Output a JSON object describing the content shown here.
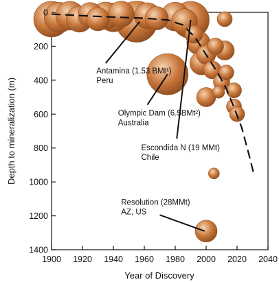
{
  "chart_data": {
    "type": "scatter",
    "title": "",
    "xlabel": "Year of Discovery",
    "ylabel": "Depth to mineralization (m)",
    "xlim": [
      1900,
      2040
    ],
    "ylim": [
      0,
      1400
    ],
    "y_inverted": true,
    "grid": false,
    "x_ticks": [
      "1900",
      "1920",
      "1940",
      "1960",
      "1980",
      "2000",
      "2020",
      "2040"
    ],
    "y_ticks": [
      "0",
      "200",
      "400",
      "600",
      "800",
      "1000",
      "1200",
      "1400"
    ],
    "bubble_color": "#c8763a",
    "bubble_highlight": "#f6d3b0",
    "bubble_shadow": "#8a4a1e",
    "points": [
      {
        "x": 1900,
        "y": 40,
        "size": 26
      },
      {
        "x": 1905,
        "y": 30,
        "size": 22
      },
      {
        "x": 1912,
        "y": 20,
        "size": 21
      },
      {
        "x": 1918,
        "y": 40,
        "size": 19
      },
      {
        "x": 1925,
        "y": 15,
        "size": 18
      },
      {
        "x": 1930,
        "y": 40,
        "size": 17
      },
      {
        "x": 1935,
        "y": 20,
        "size": 20
      },
      {
        "x": 1940,
        "y": 30,
        "size": 21
      },
      {
        "x": 1945,
        "y": 10,
        "size": 19
      },
      {
        "x": 1955,
        "y": 55,
        "size": 30
      },
      {
        "x": 1962,
        "y": 20,
        "size": 19
      },
      {
        "x": 1968,
        "y": 35,
        "size": 17
      },
      {
        "x": 1975,
        "y": 365,
        "size": 30
      },
      {
        "x": 1980,
        "y": 25,
        "size": 21
      },
      {
        "x": 1986,
        "y": 55,
        "size": 19
      },
      {
        "x": 1990,
        "y": 45,
        "size": 27
      },
      {
        "x": 1992,
        "y": 130,
        "size": 13
      },
      {
        "x": 1995,
        "y": 180,
        "size": 17
      },
      {
        "x": 1997,
        "y": 300,
        "size": 17
      },
      {
        "x": 2000,
        "y": 250,
        "size": 14
      },
      {
        "x": 2006,
        "y": 200,
        "size": 12
      },
      {
        "x": 2004,
        "y": 340,
        "size": 13
      },
      {
        "x": 2010,
        "y": 410,
        "size": 12
      },
      {
        "x": 2008,
        "y": 470,
        "size": 9
      },
      {
        "x": 2000,
        "y": 500,
        "size": 14
      },
      {
        "x": 2012,
        "y": 40,
        "size": 11
      },
      {
        "x": 2012,
        "y": 225,
        "size": 14
      },
      {
        "x": 2013,
        "y": 355,
        "size": 11
      },
      {
        "x": 2018,
        "y": 460,
        "size": 11
      },
      {
        "x": 2018,
        "y": 555,
        "size": 11
      },
      {
        "x": 2020,
        "y": 600,
        "size": 11
      },
      {
        "x": 2005,
        "y": 950,
        "size": 8
      },
      {
        "x": 2000,
        "y": 1290,
        "size": 16
      }
    ],
    "trend": {
      "x": [
        1900,
        1920,
        1940,
        1960,
        1975,
        1985,
        1993,
        2000,
        2007,
        2013,
        2018,
        2023,
        2028,
        2031
      ],
      "y": [
        10,
        20,
        28,
        35,
        45,
        75,
        150,
        250,
        350,
        450,
        560,
        680,
        850,
        960
      ]
    },
    "annotations": [
      {
        "lines": [
          "Antamina (1.53 BMt¹)",
          "Peru"
        ],
        "target": [
          1957,
          55
        ],
        "anchor": [
          1929,
          360
        ],
        "leader_from": [
          1935,
          300
        ]
      },
      {
        "lines": [
          "Olympic Dam (6.5BMt²)",
          "Australia"
        ],
        "target": [
          1975,
          365
        ],
        "anchor": [
          1943,
          608
        ],
        "leader_from": [
          1962,
          545
        ]
      },
      {
        "lines": [
          "Escondida N (19 MMt)",
          "Chile"
        ],
        "target": [
          1990,
          45
        ],
        "anchor": [
          1958,
          814
        ],
        "leader_from": [
          1981,
          745
        ]
      },
      {
        "lines": [
          "Resolution (28MMt)",
          "AZ, US"
        ],
        "target": [
          1999,
          1290
        ],
        "anchor": [
          1945,
          1135
        ],
        "leader_from": [
          1970,
          1195
        ]
      }
    ]
  }
}
